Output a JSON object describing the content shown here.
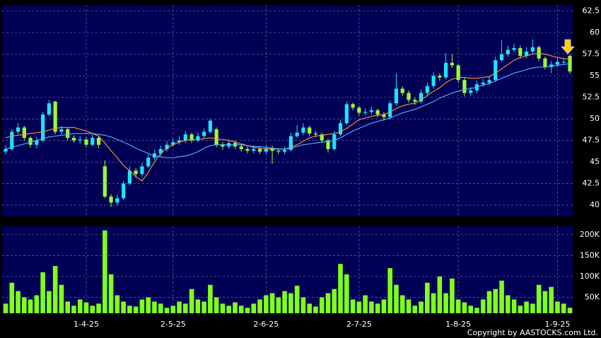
{
  "chart_data": [
    {
      "type": "candlestick",
      "open": [
        46.2,
        46.5,
        48.5,
        49,
        47.8,
        47,
        47.5,
        50.5,
        52,
        48.5,
        48.8,
        47.8,
        47.5,
        47.6,
        47,
        47.8,
        44.5,
        41,
        40.3,
        40.8,
        42.5,
        44,
        43.6,
        44.5,
        45.5,
        46,
        46.5,
        47,
        47.3,
        47.5,
        48.2,
        47.5,
        48,
        48.5,
        48.8,
        47,
        46.8,
        47.2,
        46.8,
        46.5,
        46.3,
        46.5,
        46.2,
        46.6,
        46.3,
        46.2,
        46.4,
        48,
        48.4,
        49,
        48.3,
        48.2,
        47.5,
        46.5,
        48.2,
        49.5,
        51.7,
        51.3,
        50.7,
        50.8,
        51,
        50.5,
        50.2,
        51.8,
        53.5,
        53,
        52.2,
        52,
        53,
        53.8,
        55,
        54.8,
        56.5,
        56.2,
        54.5,
        53,
        53.3,
        54,
        54.2,
        54.5,
        56.8,
        57.5,
        58,
        58.2,
        57.3,
        57.8,
        58.3,
        57,
        56,
        56.3,
        56.6,
        57.3
      ],
      "high": [
        46.9,
        48.8,
        49.5,
        49.2,
        48,
        47.9,
        50.8,
        52.2,
        52.1,
        49.2,
        49,
        48.1,
        48,
        47.9,
        48.2,
        48,
        45.2,
        41.3,
        41.2,
        42.8,
        44.5,
        44.3,
        44.9,
        45.9,
        46.4,
        46.9,
        47.4,
        47.7,
        48,
        48.6,
        48.4,
        48.4,
        48.9,
        50,
        49,
        47.3,
        47.6,
        47.5,
        47.1,
        46.8,
        46.9,
        46.8,
        47,
        46.9,
        46.6,
        46.8,
        48.4,
        49.3,
        49.5,
        49.2,
        48.6,
        48.4,
        47.7,
        48.6,
        49.9,
        52,
        51.9,
        51.5,
        51.2,
        51.4,
        51.2,
        50.8,
        52.1,
        55.3,
        53.8,
        53.3,
        52.5,
        53.4,
        54.2,
        55.4,
        55.3,
        57.6,
        57.5,
        56.4,
        54.8,
        53.7,
        54.4,
        54.6,
        54.9,
        57.2,
        59.1,
        58.5,
        58.7,
        58.5,
        58.3,
        59.2,
        58.5,
        57.2,
        56.7,
        57,
        57,
        57.5
      ],
      "low": [
        45.9,
        46.3,
        48.2,
        47.5,
        46.7,
        46.6,
        47.3,
        50.3,
        48.2,
        48.2,
        47.5,
        47.2,
        47.1,
        46.7,
        46.8,
        46.6,
        40.8,
        39.8,
        40,
        40.6,
        42.3,
        43.2,
        43.3,
        44.3,
        45.2,
        45.7,
        46.2,
        46.8,
        47,
        47.2,
        47.2,
        47.3,
        47.7,
        48.3,
        46.7,
        46.4,
        46.5,
        46.5,
        46.2,
        46,
        46,
        45.9,
        45.9,
        44.8,
        45.9,
        45.9,
        46.2,
        47.8,
        48.1,
        48,
        47.9,
        47.2,
        46.1,
        46.3,
        48,
        49.3,
        51,
        50.4,
        50.4,
        50.5,
        50.2,
        49.8,
        49.9,
        51.5,
        52.7,
        51.9,
        51.6,
        51.8,
        52.7,
        53.5,
        54.4,
        54.6,
        55.9,
        54.2,
        52.6,
        52.7,
        53,
        53.7,
        53.9,
        54.3,
        56.6,
        57.2,
        57.7,
        57,
        57,
        57.5,
        56.7,
        55.7,
        55.3,
        56,
        56.3,
        55.2
      ],
      "close": [
        46.5,
        48.5,
        49,
        47.8,
        47,
        47.5,
        50.5,
        51.8,
        48.5,
        48.8,
        47.8,
        47.5,
        47.6,
        47,
        47.8,
        47,
        41,
        40.3,
        40.8,
        42.5,
        44,
        43.6,
        44.5,
        45.5,
        46,
        46.5,
        47,
        47.3,
        47.5,
        48.2,
        47.5,
        48,
        48.5,
        49.8,
        47,
        46.8,
        47.2,
        46.8,
        46.5,
        46.3,
        46.5,
        46.2,
        46.6,
        46.3,
        46.2,
        46.4,
        48,
        48.4,
        49,
        48.3,
        48.2,
        47.5,
        46.5,
        48.2,
        49.5,
        51.7,
        51.3,
        50.7,
        50.8,
        51,
        50.5,
        50.2,
        51.8,
        53.5,
        53,
        52.2,
        52,
        53,
        53.8,
        55,
        54.8,
        56.5,
        56.2,
        54.5,
        53,
        53.3,
        54,
        54.2,
        54.5,
        56.8,
        57.5,
        58,
        58.2,
        57.3,
        57.8,
        58.3,
        57,
        56,
        56.3,
        56.6,
        56.6,
        55.5
      ],
      "up_color": "#1ee3ff",
      "down_color": "#99ff33",
      "series": [
        {
          "color": "#ff9a2e",
          "values": [
            47.8,
            48,
            48.1,
            48.2,
            48.3,
            48.4,
            48.5,
            48.7,
            48.9,
            49,
            49,
            49,
            48.8,
            48.6,
            48.3,
            48,
            47.2,
            46.3,
            45.5,
            44.6,
            44,
            43.3,
            42.8,
            43.8,
            45,
            46,
            46.6,
            47,
            47.3,
            47.5,
            47.6,
            47.6,
            47.7,
            47.8,
            47.7,
            47.6,
            47.5,
            47.3,
            47.1,
            46.9,
            46.7,
            46.6,
            46.5,
            46.5,
            46.5,
            46.5,
            46.7,
            47,
            47.4,
            47.8,
            48,
            48.1,
            48.2,
            48.3,
            48.5,
            48.9,
            49.4,
            49.9,
            50.1,
            50.3,
            50.4,
            50.5,
            50.8,
            51.2,
            51.5,
            51.7,
            51.8,
            52.2,
            52.7,
            53.2,
            53.6,
            54.2,
            54.6,
            54.8,
            54.8,
            54.7,
            54.7,
            54.8,
            54.9,
            55.3,
            55.8,
            56.3,
            56.8,
            57.1,
            57.3,
            57.5,
            57.6,
            57.5,
            57.3,
            57.1,
            57,
            56.9
          ]
        },
        {
          "color": "#5fb4ff",
          "values": [
            46.5,
            46.7,
            46.9,
            47.1,
            47.3,
            47.5,
            47.7,
            47.9,
            48,
            48.1,
            48.2,
            48.3,
            48.3,
            48.3,
            48.3,
            48.2,
            48.1,
            47.9,
            47.6,
            47.3,
            47,
            46.6,
            46.3,
            46,
            45.7,
            45.6,
            45.5,
            45.5,
            45.6,
            45.7,
            45.9,
            46.2,
            46.6,
            46.9,
            47,
            47,
            47,
            47,
            47,
            46.9,
            46.8,
            46.8,
            46.7,
            46.6,
            46.5,
            46.5,
            46.6,
            46.8,
            47,
            47.1,
            47.2,
            47.3,
            47.4,
            47.5,
            47.8,
            48.2,
            48.6,
            48.9,
            49.2,
            49.5,
            49.7,
            49.9,
            50.1,
            50.4,
            50.7,
            50.9,
            51.1,
            51.4,
            51.7,
            52,
            52.4,
            52.7,
            53,
            53.2,
            53.4,
            53.5,
            53.7,
            53.9,
            54.1,
            54.4,
            54.7,
            55,
            55.3,
            55.5,
            55.7,
            55.9,
            56,
            56,
            56.1,
            56.2,
            56.3,
            56.4
          ]
        }
      ],
      "ylim": [
        38.7,
        63.2
      ],
      "yticks": [
        40,
        42.5,
        45,
        47.5,
        50,
        52.5,
        55,
        57.5,
        60,
        62.5
      ],
      "grid": true
    },
    {
      "type": "bar",
      "categories": [
        null,
        null,
        null,
        null,
        null,
        null,
        null,
        null,
        null,
        null,
        null,
        null,
        null,
        "1-4-25",
        null,
        null,
        null,
        null,
        null,
        null,
        null,
        null,
        null,
        null,
        null,
        null,
        null,
        "2-5-25",
        null,
        null,
        null,
        null,
        null,
        null,
        null,
        null,
        null,
        null,
        null,
        null,
        null,
        null,
        "2-6-25",
        null,
        null,
        null,
        null,
        null,
        null,
        null,
        null,
        null,
        null,
        null,
        null,
        null,
        null,
        "2-7-25",
        null,
        null,
        null,
        null,
        null,
        null,
        null,
        null,
        null,
        null,
        null,
        null,
        null,
        null,
        null,
        "1-8-25",
        null,
        null,
        null,
        null,
        null,
        null,
        null,
        null,
        null,
        null,
        null,
        null,
        null,
        null,
        null,
        "1-9-25",
        null,
        null
      ],
      "values": [
        35000,
        85000,
        65000,
        50000,
        45000,
        55000,
        110000,
        65000,
        125000,
        80000,
        40000,
        30000,
        45000,
        38000,
        30000,
        35000,
        210000,
        105000,
        55000,
        40000,
        30000,
        28000,
        45000,
        50000,
        40000,
        35000,
        25000,
        30000,
        40000,
        35000,
        70000,
        45000,
        40000,
        80000,
        50000,
        35000,
        30000,
        38000,
        30000,
        25000,
        35000,
        45000,
        55000,
        60000,
        50000,
        65000,
        60000,
        78000,
        50000,
        35000,
        28000,
        50000,
        60000,
        70000,
        130000,
        105000,
        45000,
        40000,
        55000,
        40000,
        35000,
        45000,
        120000,
        80000,
        55000,
        45000,
        30000,
        40000,
        85000,
        60000,
        100000,
        60000,
        95000,
        45000,
        38000,
        30000,
        25000,
        45000,
        65000,
        70000,
        90000,
        55000,
        45000,
        30000,
        40000,
        35000,
        80000,
        65000,
        75000,
        40000,
        35000,
        25000
      ],
      "color": "#80ff1a",
      "ylim": [
        12000,
        220000
      ],
      "yticks": [
        {
          "value": 50000,
          "label": "50K"
        },
        {
          "value": 100000,
          "label": "100K"
        },
        {
          "value": 150000,
          "label": "150K"
        },
        {
          "value": 200000,
          "label": "200K"
        }
      ],
      "grid": true
    }
  ],
  "copyright": "Copyright by AASTOCKS.com Ltd."
}
